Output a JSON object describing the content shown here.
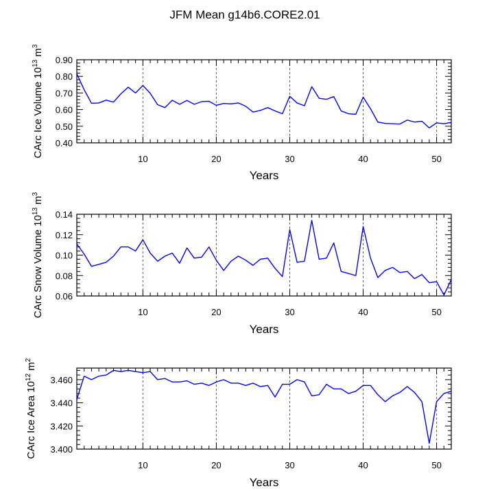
{
  "title": "JFM Mean g14b6.CORE2.01",
  "colors": {
    "line": "#0000ff",
    "axis": "#000000",
    "grid": "#555555"
  },
  "chart_data": [
    {
      "type": "line",
      "xlabel": "Years",
      "ylabel_parts": [
        "CArc Ice Volume 10",
        "13",
        " m",
        "3"
      ],
      "xlim": [
        1,
        52
      ],
      "ylim": [
        0.4,
        0.9
      ],
      "xticks": [
        10,
        20,
        30,
        40,
        50
      ],
      "yticks": [
        0.4,
        0.5,
        0.6,
        0.7,
        0.8,
        0.9
      ],
      "ytick_labels": [
        "0.40",
        "0.50",
        "0.60",
        "0.70",
        "0.80",
        "0.90"
      ],
      "x": [
        1,
        2,
        3,
        4,
        5,
        6,
        7,
        8,
        9,
        10,
        11,
        12,
        13,
        14,
        15,
        16,
        17,
        18,
        19,
        20,
        21,
        22,
        23,
        24,
        25,
        26,
        27,
        28,
        29,
        30,
        31,
        32,
        33,
        34,
        35,
        36,
        37,
        38,
        39,
        40,
        41,
        42,
        43,
        44,
        45,
        46,
        47,
        48,
        49,
        50,
        51,
        52
      ],
      "y": [
        0.815,
        0.72,
        0.638,
        0.64,
        0.657,
        0.645,
        0.695,
        0.735,
        0.7,
        0.745,
        0.698,
        0.63,
        0.612,
        0.656,
        0.632,
        0.655,
        0.632,
        0.648,
        0.65,
        0.626,
        0.637,
        0.634,
        0.64,
        0.62,
        0.585,
        0.595,
        0.612,
        0.592,
        0.575,
        0.68,
        0.64,
        0.623,
        0.738,
        0.668,
        0.662,
        0.678,
        0.592,
        0.575,
        0.572,
        0.675,
        0.605,
        0.525,
        0.517,
        0.515,
        0.513,
        0.537,
        0.525,
        0.53,
        0.49,
        0.52,
        0.515,
        0.523
      ]
    },
    {
      "type": "line",
      "xlabel": "Years",
      "ylabel_parts": [
        "CArc Snow Volume 10",
        "13",
        " m",
        "3"
      ],
      "xlim": [
        1,
        52
      ],
      "ylim": [
        0.06,
        0.14
      ],
      "xticks": [
        10,
        20,
        30,
        40,
        50
      ],
      "yticks": [
        0.06,
        0.08,
        0.1,
        0.12,
        0.14
      ],
      "ytick_labels": [
        "0.06",
        "0.08",
        "0.10",
        "0.12",
        "0.14"
      ],
      "x": [
        1,
        2,
        3,
        4,
        5,
        6,
        7,
        8,
        9,
        10,
        11,
        12,
        13,
        14,
        15,
        16,
        17,
        18,
        19,
        20,
        21,
        22,
        23,
        24,
        25,
        26,
        27,
        28,
        29,
        30,
        31,
        32,
        33,
        34,
        35,
        36,
        37,
        38,
        39,
        40,
        41,
        42,
        43,
        44,
        45,
        46,
        47,
        48,
        49,
        50,
        51,
        52
      ],
      "y": [
        0.111,
        0.101,
        0.089,
        0.091,
        0.093,
        0.099,
        0.108,
        0.108,
        0.104,
        0.115,
        0.102,
        0.094,
        0.099,
        0.102,
        0.092,
        0.107,
        0.097,
        0.098,
        0.108,
        0.095,
        0.085,
        0.094,
        0.099,
        0.095,
        0.09,
        0.096,
        0.097,
        0.087,
        0.079,
        0.125,
        0.093,
        0.094,
        0.134,
        0.096,
        0.097,
        0.112,
        0.084,
        0.082,
        0.08,
        0.128,
        0.097,
        0.078,
        0.085,
        0.088,
        0.083,
        0.084,
        0.077,
        0.081,
        0.073,
        0.074,
        0.061,
        0.076
      ]
    },
    {
      "type": "line",
      "xlabel": "Years",
      "ylabel_parts": [
        "CArc Ice Area 10",
        "12",
        " m",
        "2"
      ],
      "xlim": [
        1,
        52
      ],
      "ylim": [
        3.4,
        3.47
      ],
      "xticks": [
        10,
        20,
        30,
        40,
        50
      ],
      "yticks": [
        3.4,
        3.42,
        3.44,
        3.46
      ],
      "ytick_labels": [
        "3.400",
        "3.420",
        "3.440",
        "3.460"
      ],
      "x": [
        1,
        2,
        3,
        4,
        5,
        6,
        7,
        8,
        9,
        10,
        11,
        12,
        13,
        14,
        15,
        16,
        17,
        18,
        19,
        20,
        21,
        22,
        23,
        24,
        25,
        26,
        27,
        28,
        29,
        30,
        31,
        32,
        33,
        34,
        35,
        36,
        37,
        38,
        39,
        40,
        41,
        42,
        43,
        44,
        45,
        46,
        47,
        48,
        49,
        50,
        51,
        52
      ],
      "y": [
        3.443,
        3.463,
        3.46,
        3.463,
        3.464,
        3.468,
        3.467,
        3.468,
        3.467,
        3.466,
        3.467,
        3.46,
        3.461,
        3.458,
        3.458,
        3.459,
        3.456,
        3.457,
        3.455,
        3.458,
        3.46,
        3.457,
        3.457,
        3.455,
        3.457,
        3.454,
        3.455,
        3.445,
        3.456,
        3.456,
        3.46,
        3.458,
        3.446,
        3.447,
        3.456,
        3.452,
        3.452,
        3.448,
        3.45,
        3.455,
        3.455,
        3.447,
        3.441,
        3.446,
        3.449,
        3.454,
        3.449,
        3.441,
        3.405,
        3.441,
        3.448,
        3.45
      ]
    }
  ]
}
